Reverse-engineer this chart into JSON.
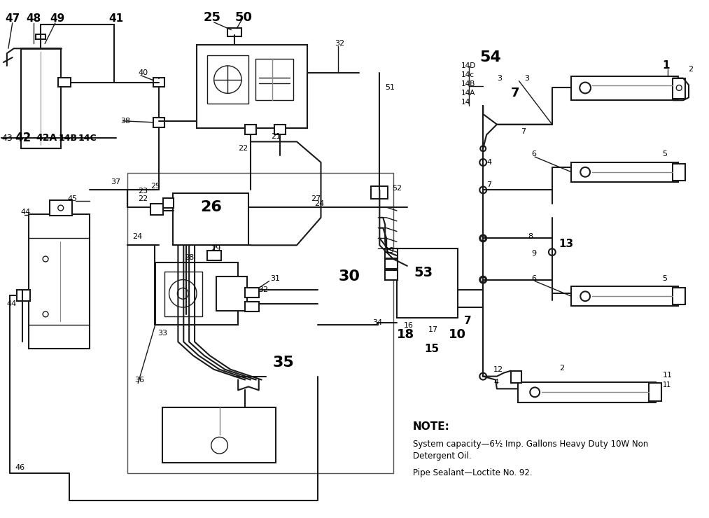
{
  "background_color": "#ffffff",
  "line_color": "#1a1a1a",
  "note_bold": "NOTE:",
  "note_line1": "System capacity—6½ Imp. Gallons Heavy Duty 10W Non",
  "note_line2": "Detergent Oil.",
  "note_line3": "Pipe Sealant—Loctite No. 92.",
  "fig_width": 10.13,
  "fig_height": 7.4,
  "dpi": 100
}
